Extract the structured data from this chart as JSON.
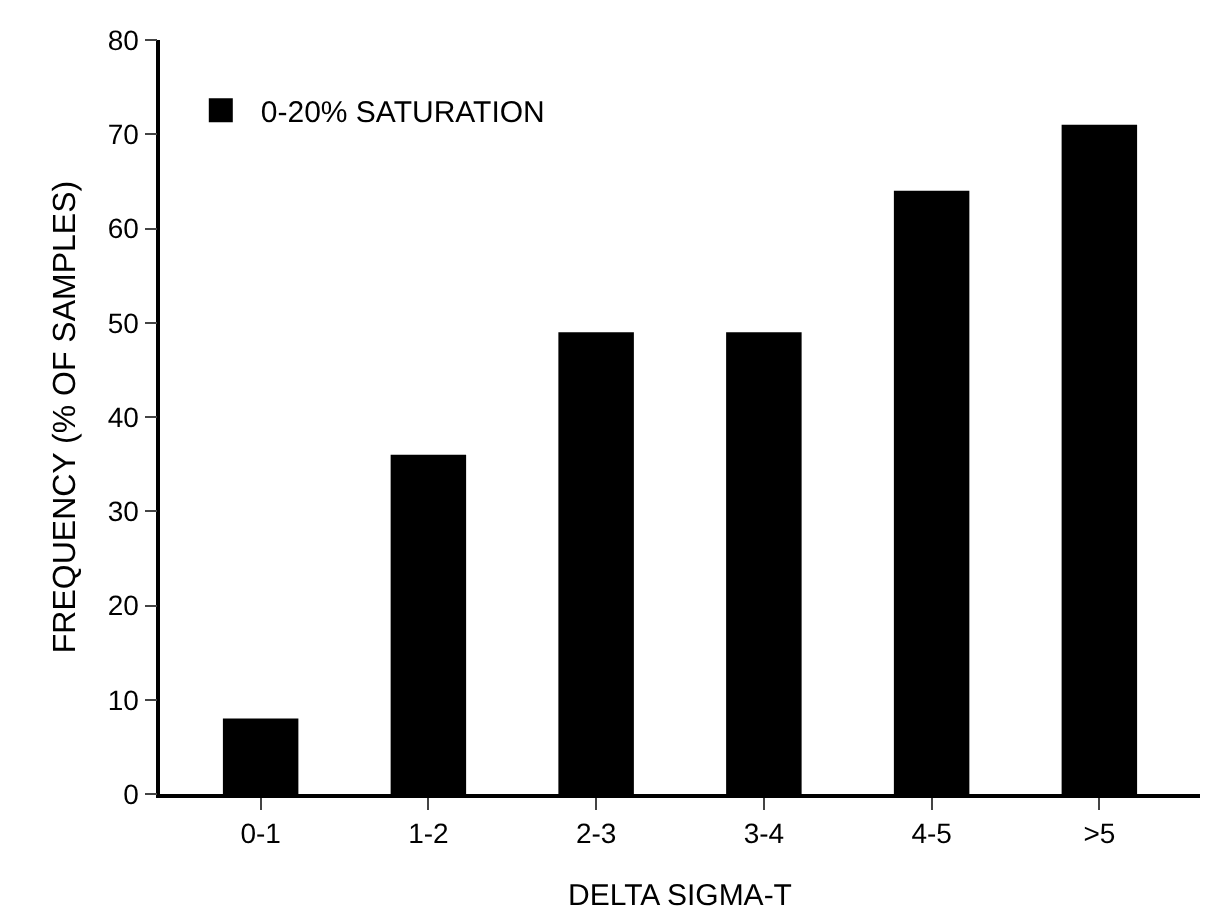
{
  "chart_data": {
    "type": "bar",
    "xlabel": "DELTA SIGMA-T",
    "ylabel": "FREQUENCY (% OF SAMPLES)",
    "categories": [
      "0-1",
      "1-2",
      "2-3",
      "3-4",
      "4-5",
      ">5"
    ],
    "series": [
      {
        "name": "0-20% SATURATION",
        "color": "#000000",
        "values": [
          8,
          36,
          49,
          49,
          64,
          71
        ]
      }
    ],
    "ylim": [
      0,
      80
    ],
    "yticks": [
      0,
      10,
      20,
      30,
      40,
      50,
      60,
      70,
      80
    ],
    "grid": false,
    "legend": "top left"
  }
}
